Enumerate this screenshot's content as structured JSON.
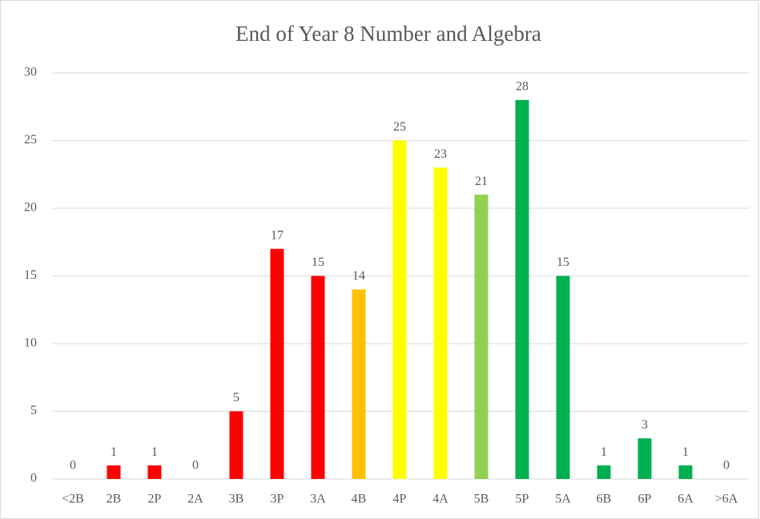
{
  "chart_data": {
    "type": "bar",
    "title": "End of Year 8 Number and Algebra",
    "categories": [
      "<2B",
      "2B",
      "2P",
      "2A",
      "3B",
      "3P",
      "3A",
      "4B",
      "4P",
      "4A",
      "5B",
      "5P",
      "5A",
      "6B",
      "6P",
      "6A",
      ">6A"
    ],
    "values": [
      0,
      1,
      1,
      0,
      5,
      17,
      15,
      14,
      25,
      23,
      21,
      28,
      15,
      1,
      3,
      1,
      0
    ],
    "colors": [
      "#ff0000",
      "#ff0000",
      "#ff0000",
      "#ff0000",
      "#ff0000",
      "#ff0000",
      "#ff0000",
      "#ffc000",
      "#ffff00",
      "#ffff00",
      "#92d050",
      "#00b050",
      "#00b050",
      "#00b050",
      "#00b050",
      "#00b050",
      "#00b050"
    ],
    "ylim": [
      0,
      30
    ],
    "yticks": [
      0,
      5,
      10,
      15,
      20,
      25,
      30
    ],
    "grid": true
  }
}
